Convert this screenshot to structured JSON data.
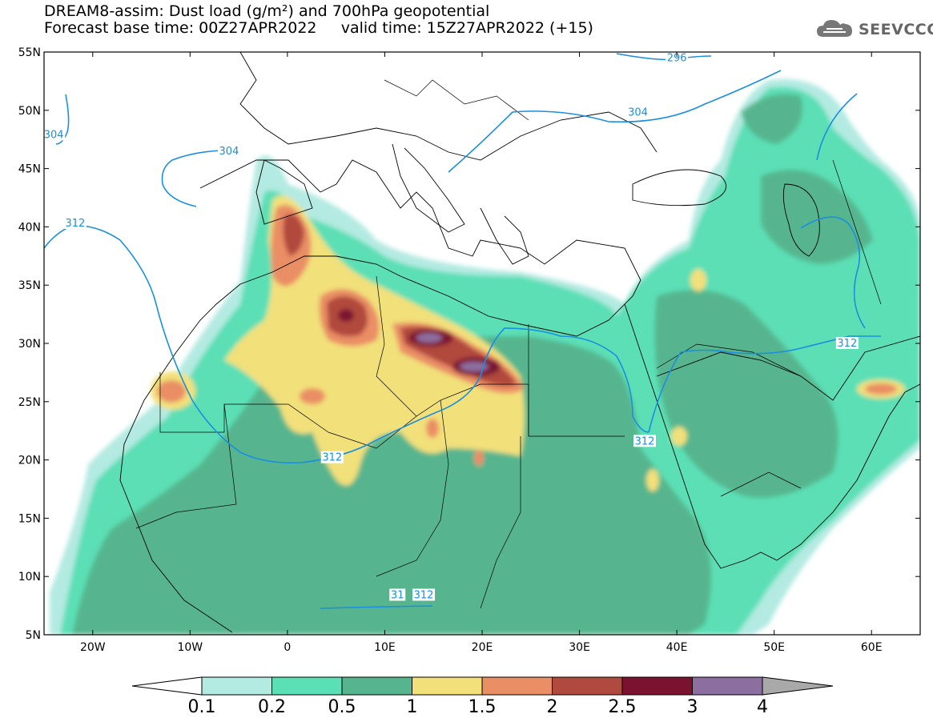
{
  "title": {
    "line1": "DREAM8-assim: Dust load (g/m²) and 700hPa geopotential",
    "line2_left": "Forecast base time: 00Z27APR2022",
    "line2_right": "valid time: 15Z27APR2022 (+15)"
  },
  "logo": {
    "text": "SEEVCCC",
    "icon": "cloud-icon"
  },
  "map": {
    "lon_range": [
      -25,
      65
    ],
    "lat_range": [
      5,
      55
    ],
    "lon_ticks": [
      {
        "value": -20,
        "label": "20W"
      },
      {
        "value": -10,
        "label": "10W"
      },
      {
        "value": 0,
        "label": "0"
      },
      {
        "value": 10,
        "label": "10E"
      },
      {
        "value": 20,
        "label": "20E"
      },
      {
        "value": 30,
        "label": "30E"
      },
      {
        "value": 40,
        "label": "40E"
      },
      {
        "value": 50,
        "label": "50E"
      },
      {
        "value": 60,
        "label": "60E"
      }
    ],
    "lat_ticks": [
      {
        "value": 55,
        "label": "55N"
      },
      {
        "value": 50,
        "label": "50N"
      },
      {
        "value": 45,
        "label": "45N"
      },
      {
        "value": 40,
        "label": "40N"
      },
      {
        "value": 35,
        "label": "35N"
      },
      {
        "value": 30,
        "label": "30N"
      },
      {
        "value": 25,
        "label": "25N"
      },
      {
        "value": 20,
        "label": "20N"
      },
      {
        "value": 15,
        "label": "15N"
      },
      {
        "value": 10,
        "label": "10N"
      },
      {
        "value": 5,
        "label": "5N"
      }
    ],
    "contour_labels": [
      {
        "text": "296",
        "lon": 40,
        "lat": 54.5
      },
      {
        "text": "304",
        "lon": 36,
        "lat": 49.8
      },
      {
        "text": "304",
        "lon": -24,
        "lat": 47.9
      },
      {
        "text": "304",
        "lon": -6,
        "lat": 46.5
      },
      {
        "text": "312",
        "lon": -21.8,
        "lat": 40.3
      },
      {
        "text": "312",
        "lon": 57.5,
        "lat": 30
      },
      {
        "text": "312",
        "lon": 36.7,
        "lat": 21.6
      },
      {
        "text": "312",
        "lon": 4.6,
        "lat": 20.2
      },
      {
        "text": "312",
        "lon": 14,
        "lat": 8.4
      },
      {
        "text": "31",
        "lon": 11.3,
        "lat": 8.4
      }
    ]
  },
  "colorbar": {
    "labels": [
      "0.1",
      "0.2",
      "0.5",
      "1",
      "1.5",
      "2",
      "2.5",
      "3",
      "4"
    ],
    "colors": [
      "#ffffff",
      "#b3eae2",
      "#5bdfb5",
      "#56b58e",
      "#f2e07a",
      "#ea8e65",
      "#b14a3e",
      "#7b1330",
      "#8d6ea0",
      "#a9a9a9"
    ]
  },
  "field_colors": {
    "sea": "#ffffff",
    "level_01": "#b3eae2",
    "level_02": "#5bdfb5",
    "level_05": "#56b58e",
    "level_1": "#f2e07a",
    "level_15": "#ea8e65",
    "level_2": "#b14a3e",
    "level_25": "#7b1330",
    "level_3": "#8d6ea0",
    "contour": "#1a8fe0",
    "borders": "#000000"
  }
}
